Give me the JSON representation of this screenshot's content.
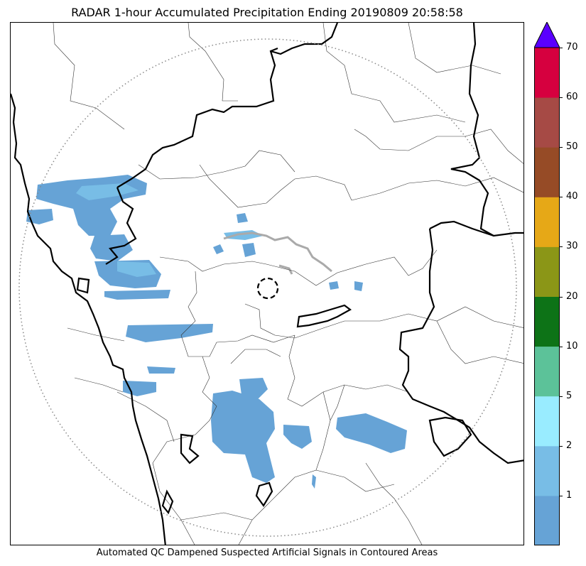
{
  "title": "RADAR 1-hour Accumulated Precipitation Ending 20190809 20:58:58",
  "footer": "Automated QC Dampened Suspected Artificial Signals in Contoured Areas",
  "colorbar": {
    "extend": "max",
    "over_color": "#5a00ff",
    "bins": [
      {
        "color": "#66a3d6"
      },
      {
        "color": "#78bde6"
      },
      {
        "color": "#99ecff"
      },
      {
        "color": "#5cc299"
      },
      {
        "color": "#0d7317"
      },
      {
        "color": "#8b9617"
      },
      {
        "color": "#e6a817"
      },
      {
        "color": "#964b26"
      },
      {
        "color": "#a64a45"
      },
      {
        "color": "#d6003f"
      }
    ],
    "ticks": [
      {
        "label": "1",
        "bin": 1
      },
      {
        "label": "2",
        "bin": 2
      },
      {
        "label": "5",
        "bin": 3
      },
      {
        "label": "10",
        "bin": 4
      },
      {
        "label": "20",
        "bin": 5
      },
      {
        "label": "30",
        "bin": 6
      },
      {
        "label": "40",
        "bin": 7
      },
      {
        "label": "50",
        "bin": 8
      },
      {
        "label": "60",
        "bin": 9
      },
      {
        "label": "70",
        "bin": 10
      }
    ]
  },
  "map": {
    "radar_range_ring": "dotted",
    "radar_site_marker": "dashed-circle",
    "precip_color": "#66a3d6",
    "precip_light_color": "#78bde6"
  }
}
